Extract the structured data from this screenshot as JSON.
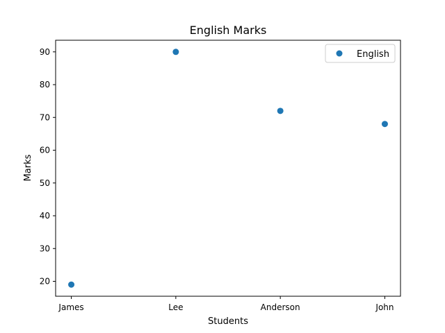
{
  "chart_data": {
    "type": "scatter",
    "title": "English Marks",
    "xlabel": "Students",
    "ylabel": "Marks",
    "categories": [
      "James",
      "Lee",
      "Anderson",
      "John"
    ],
    "series": [
      {
        "name": "English",
        "values": [
          19,
          90,
          72,
          68
        ],
        "color": "#1f77b4"
      }
    ],
    "yticks": [
      20,
      30,
      40,
      50,
      60,
      70,
      80,
      90
    ],
    "ylim": [
      15.45,
      93.55
    ],
    "grid": false,
    "legend_position": "top-right"
  }
}
